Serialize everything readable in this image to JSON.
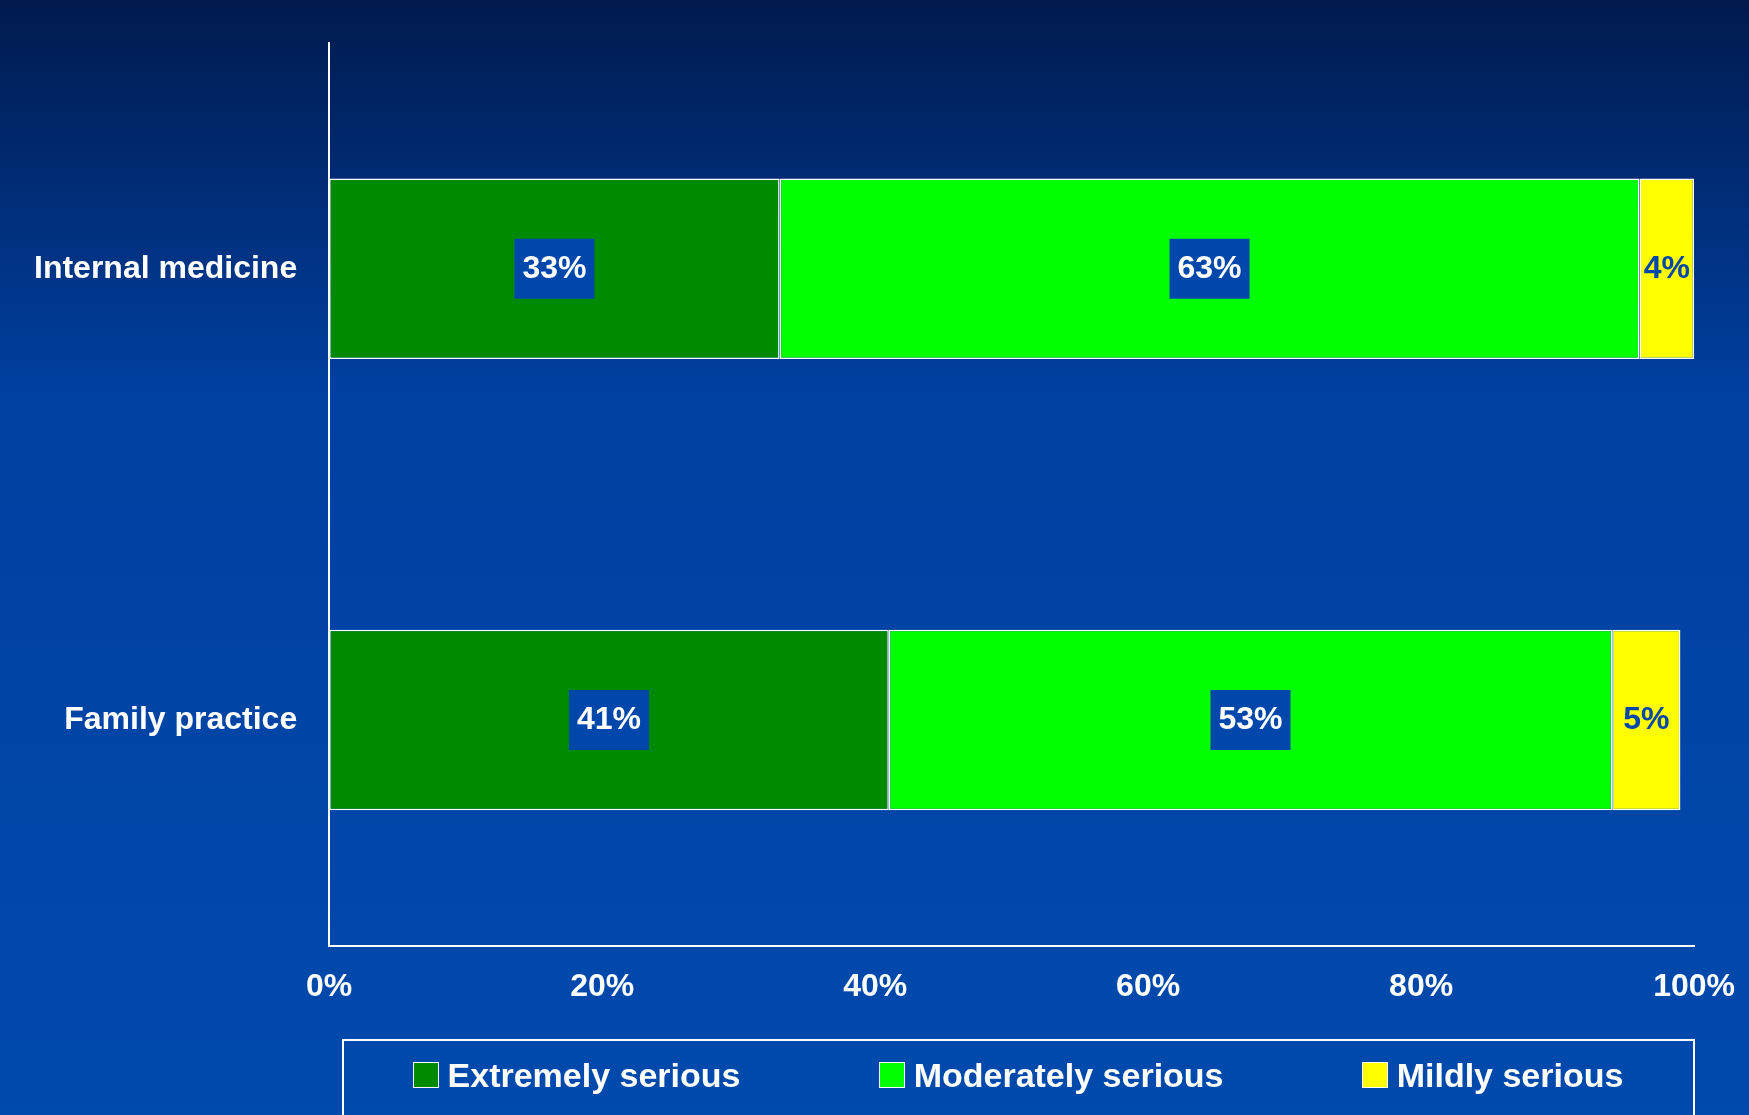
{
  "chart_data": {
    "type": "bar",
    "orientation": "horizontal",
    "stacked": true,
    "categories": [
      "Internal medicine",
      "Family practice"
    ],
    "series": [
      {
        "name": "Extremely serious",
        "color": "#008a00",
        "values": [
          33,
          41
        ],
        "value_labels": [
          "33%",
          "41%"
        ]
      },
      {
        "name": "Moderately serious",
        "color": "#00ff00",
        "values": [
          63,
          53
        ],
        "value_labels": [
          "63%",
          "53%"
        ]
      },
      {
        "name": "Mildly serious",
        "color": "#ffff00",
        "values": [
          4,
          5
        ],
        "value_labels": [
          "4%",
          "5%"
        ]
      }
    ],
    "xlim": [
      0,
      100
    ],
    "xticks": [
      {
        "value": 0,
        "label": "0%"
      },
      {
        "value": 20,
        "label": "20%"
      },
      {
        "value": 40,
        "label": "40%"
      },
      {
        "value": 60,
        "label": "60%"
      },
      {
        "value": 80,
        "label": "80%"
      },
      {
        "value": 100,
        "label": "100%"
      }
    ],
    "grid": false,
    "legend": "bottom"
  }
}
